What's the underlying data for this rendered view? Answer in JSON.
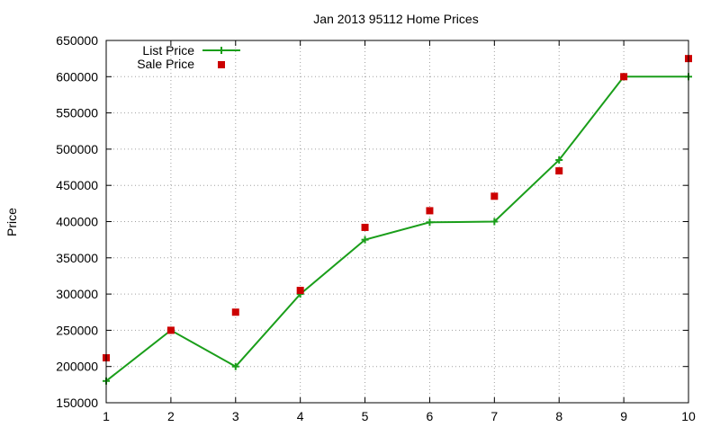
{
  "chart_data": {
    "type": "line",
    "title": "Jan 2013 95112 Home Prices",
    "xlabel": "",
    "ylabel": "Price",
    "xlim": [
      1,
      10
    ],
    "ylim": [
      150000,
      650000
    ],
    "x_ticks": [
      1,
      2,
      3,
      4,
      5,
      6,
      7,
      8,
      9,
      10
    ],
    "y_ticks": [
      150000,
      200000,
      250000,
      300000,
      350000,
      400000,
      450000,
      500000,
      550000,
      600000,
      650000
    ],
    "grid": true,
    "legend_position": "top-left",
    "series": [
      {
        "name": "List Price",
        "style": "line-with-plus-markers",
        "color": "#1a9e1a",
        "x": [
          1,
          2,
          3,
          4,
          5,
          6,
          7,
          8,
          9,
          10
        ],
        "values": [
          180000,
          250000,
          200000,
          300000,
          375000,
          399000,
          400000,
          485000,
          600000,
          600000
        ]
      },
      {
        "name": "Sale Price",
        "style": "square-markers",
        "color": "#cc0000",
        "x": [
          1,
          2,
          3,
          4,
          5,
          6,
          7,
          8,
          9,
          10
        ],
        "values": [
          212000,
          250000,
          275000,
          305000,
          392000,
          415000,
          435000,
          470000,
          600000,
          625000
        ]
      }
    ]
  }
}
